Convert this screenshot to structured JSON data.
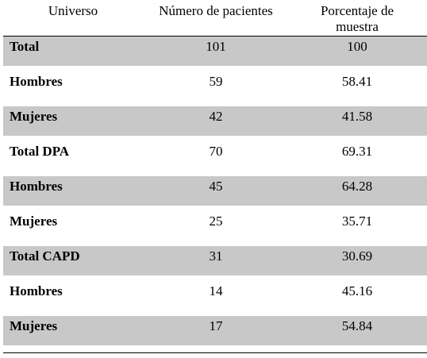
{
  "table": {
    "header": [
      "Universo",
      "Número de pacientes",
      "Porcentaje de muestra"
    ],
    "rows": [
      [
        "Total",
        "101",
        "100"
      ],
      [
        "Hombres",
        "59",
        "58.41"
      ],
      [
        "Mujeres",
        "42",
        "41.58"
      ],
      [
        "Total DPA",
        "70",
        "69.31"
      ],
      [
        "Hombres",
        "45",
        "64.28"
      ],
      [
        "Mujeres",
        "25",
        "35.71"
      ],
      [
        "Total CAPD",
        "31",
        "30.69"
      ],
      [
        "Hombres",
        "14",
        "45.16"
      ],
      [
        "Mujeres",
        "17",
        "54.84"
      ]
    ]
  }
}
